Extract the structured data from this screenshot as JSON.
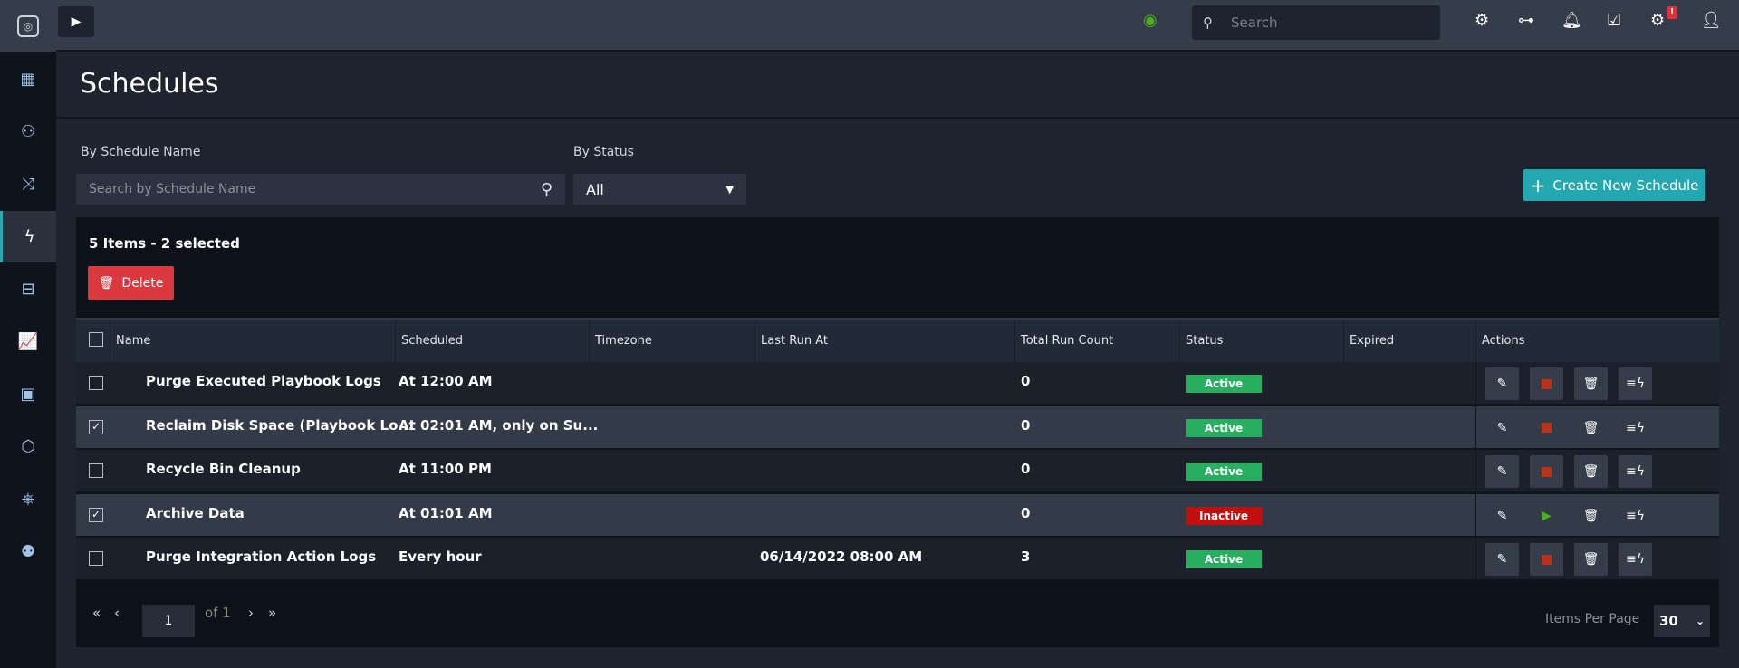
{
  "sidebar": {
    "items": [
      {
        "icon": "dashboard-icon",
        "glyph": "▦"
      },
      {
        "icon": "users-group-icon",
        "glyph": "⚇"
      },
      {
        "icon": "shuffle-icon",
        "glyph": "⤨"
      },
      {
        "icon": "playbook-bolt-icon",
        "glyph": "ϟ",
        "active": true
      },
      {
        "icon": "briefcase-icon",
        "glyph": "⊟"
      },
      {
        "icon": "analytics-icon",
        "glyph": "📈"
      },
      {
        "icon": "widgets-icon",
        "glyph": "▣"
      },
      {
        "icon": "connector-icon",
        "glyph": "⬡"
      },
      {
        "icon": "helm-icon",
        "glyph": "⎈"
      },
      {
        "icon": "people-icon",
        "glyph": "⚉"
      }
    ]
  },
  "topbar": {
    "search_placeholder": "Search",
    "notification_badge": "!"
  },
  "page": {
    "title": "Schedules"
  },
  "filters": {
    "name_label": "By Schedule Name",
    "name_placeholder": "Search by Schedule Name",
    "status_label": "By Status",
    "status_value": "All",
    "create_label": "Create New Schedule"
  },
  "table": {
    "summary": "5 Items - 2 selected",
    "delete_label": "Delete",
    "columns": [
      "Name",
      "Scheduled",
      "Timezone",
      "Last Run At",
      "Total Run Count",
      "Status",
      "Expired",
      "Actions"
    ],
    "rows": [
      {
        "name": "Purge Executed Playbook Logs",
        "scheduled": "At 12:00 AM",
        "timezone": "",
        "last_run": "",
        "count": "0",
        "status": "Active",
        "expired": "",
        "selected": false
      },
      {
        "name": "Reclaim Disk Space (Playbook Lo...",
        "scheduled": "At 02:01 AM, only on Su...",
        "timezone": "",
        "last_run": "",
        "count": "0",
        "status": "Active",
        "expired": "",
        "selected": true
      },
      {
        "name": "Recycle Bin Cleanup",
        "scheduled": "At 11:00 PM",
        "timezone": "",
        "last_run": "",
        "count": "0",
        "status": "Active",
        "expired": "",
        "selected": false
      },
      {
        "name": "Archive Data",
        "scheduled": "At 01:01 AM",
        "timezone": "",
        "last_run": "",
        "count": "0",
        "status": "Inactive",
        "expired": "",
        "selected": true
      },
      {
        "name": "Purge Integration Action Logs",
        "scheduled": "Every hour",
        "timezone": "",
        "last_run": "06/14/2022 08:00 AM",
        "count": "3",
        "status": "Active",
        "expired": "",
        "selected": false
      }
    ]
  },
  "pagination": {
    "page": "1",
    "of_label": "of 1",
    "items_per_page_label": "Items Per Page",
    "items_per_page": "30"
  },
  "colors": {
    "active": "#27ae60",
    "inactive": "#c30e0e",
    "accent": "#23a8b1",
    "delete": "#dc3840",
    "stop": "#b8321c",
    "play": "#4caf1c"
  }
}
